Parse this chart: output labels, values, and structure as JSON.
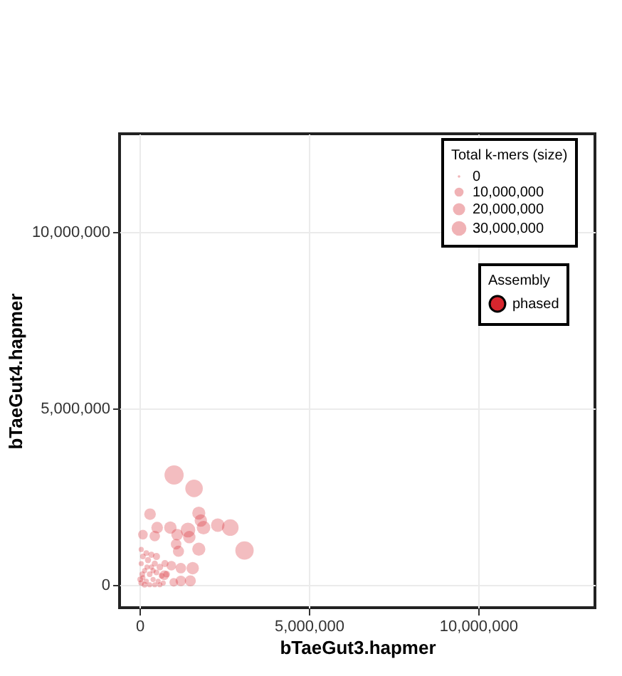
{
  "chart_data": {
    "type": "bubble",
    "xlabel": "bTaeGut3.hapmer",
    "ylabel": "bTaeGut4.hapmer",
    "legend_title": "Total k-mers (size)",
    "xlim": [
      -590000,
      13450000
    ],
    "ylim": [
      -650000,
      12780000
    ],
    "xticks": [
      0,
      {
        "value": 5000000,
        "label": "5,000,000"
      },
      {
        "value": 10000000,
        "label": "10,000,000"
      }
    ],
    "yticks": [
      0,
      {
        "value": 5000000,
        "label": "5,000,000"
      },
      {
        "value": 10000000,
        "label": "10,000,000"
      }
    ],
    "grid": true,
    "legend": "top right",
    "marker": "circle",
    "size_legend": [
      0,
      {
        "value": 10000000,
        "label": "10,000,000"
      },
      {
        "value": 20000000,
        "label": "20,000,000"
      },
      {
        "value": 30000000,
        "label": "30,000,000"
      }
    ],
    "annotations": [
      "Assembly"
    ],
    "series": [
      {
        "name": "phased",
        "color": "#d7262e",
        "x": [
          1020000,
          1610000,
          310000,
          1750000,
          1810000,
          1890000,
          2310000,
          2680000,
          3100000,
          100000,
          520000,
          450000,
          910000,
          1110000,
          1430000,
          1470000,
          1080000,
          1150000,
          1750000,
          940000,
          1220000,
          1570000,
          1500000,
          1220000,
          1010000,
          730000,
          50000,
          100000,
          150000,
          50000,
          100000,
          50000,
          200000,
          300000,
          350000,
          250000,
          400000,
          500000,
          450000,
          550000,
          600000,
          650000,
          700000,
          200000,
          350000,
          500000,
          150000,
          300000,
          450000,
          600000,
          750000,
          800000,
          80000,
          220000,
          400000,
          20000
        ],
        "values": [
          3110000,
          2730000,
          2000000,
          2030000,
          1820000,
          1620000,
          1690000,
          1620000,
          970000,
          1420000,
          1620000,
          1380000,
          1620000,
          1420000,
          1550000,
          1350000,
          1150000,
          950000,
          1010000,
          540000,
          470000,
          470000,
          110000,
          110000,
          70000,
          270000,
          50000,
          200000,
          400000,
          600000,
          800000,
          1000000,
          100000,
          300000,
          500000,
          700000,
          150000,
          350000,
          600000,
          100000,
          500000,
          250000,
          50000,
          900000,
          850000,
          800000,
          0,
          0,
          0,
          0,
          600000,
          300000,
          300000,
          500000,
          400000,
          150000
        ],
        "sizes": [
          60000000,
          50000000,
          22000000,
          28000000,
          25000000,
          30000000,
          30000000,
          45000000,
          55000000,
          15000000,
          22000000,
          18000000,
          25000000,
          22000000,
          35000000,
          25000000,
          18000000,
          20000000,
          28000000,
          15000000,
          18000000,
          25000000,
          20000000,
          18000000,
          12000000,
          15000000,
          5000000,
          4000000,
          4000000,
          4000000,
          5000000,
          4000000,
          4000000,
          5000000,
          4000000,
          6000000,
          4000000,
          5000000,
          6000000,
          4000000,
          7000000,
          5000000,
          4000000,
          5000000,
          6000000,
          8000000,
          5000000,
          4000000,
          4000000,
          4000000,
          8000000,
          7000000,
          5000000,
          4000000,
          4000000,
          5000000
        ]
      }
    ]
  }
}
